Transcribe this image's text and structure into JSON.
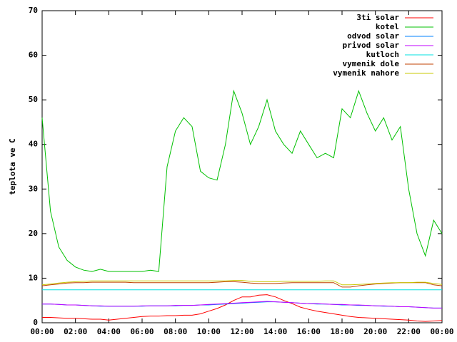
{
  "chart_data": {
    "type": "line",
    "ylabel": "teplota ve C",
    "x": [
      0,
      0.5,
      1,
      1.5,
      2,
      2.5,
      3,
      3.5,
      4,
      4.5,
      5,
      5.5,
      6,
      6.5,
      7,
      7.5,
      8,
      8.5,
      9,
      9.5,
      10,
      10.5,
      11,
      11.5,
      12,
      12.5,
      13,
      13.5,
      14,
      14.5,
      15,
      15.5,
      16,
      16.5,
      17,
      17.5,
      18,
      18.5,
      19,
      19.5,
      20,
      20.5,
      21,
      21.5,
      22,
      22.5,
      23,
      23.5,
      24
    ],
    "series": [
      {
        "name": "3ti solar",
        "color": "#ff0000",
        "values": [
          1.2,
          1.2,
          1.1,
          1.0,
          1.0,
          0.9,
          0.8,
          0.8,
          0.6,
          0.8,
          1.0,
          1.2,
          1.4,
          1.5,
          1.5,
          1.6,
          1.6,
          1.7,
          1.7,
          2.0,
          2.6,
          3.2,
          4.0,
          5.0,
          5.8,
          5.8,
          6.2,
          6.3,
          5.8,
          5.0,
          4.3,
          3.5,
          3.0,
          2.6,
          2.3,
          2.0,
          1.7,
          1.4,
          1.2,
          1.1,
          1.0,
          0.9,
          0.8,
          0.7,
          0.6,
          0.4,
          0.3,
          0.4,
          0.5
        ]
      },
      {
        "name": "kotel",
        "color": "#00c000",
        "values": [
          46,
          25,
          17,
          14,
          12.5,
          11.8,
          11.5,
          12,
          11.5,
          11.5,
          11.5,
          11.5,
          11.5,
          11.8,
          11.5,
          35,
          43,
          46,
          44,
          34,
          32.5,
          32,
          40,
          52,
          47,
          40,
          44,
          50,
          43,
          40,
          38,
          43,
          40,
          37,
          38,
          37,
          48,
          46,
          52,
          47,
          43,
          46,
          41,
          44,
          30,
          20,
          15,
          23,
          20
        ]
      },
      {
        "name": "odvod solar",
        "color": "#0080ff",
        "values": [
          4.2,
          4.2,
          4.1,
          4.0,
          4.0,
          3.9,
          3.8,
          3.7,
          3.7,
          3.7,
          3.7,
          3.7,
          3.7,
          3.8,
          3.8,
          3.8,
          3.8,
          3.9,
          3.9,
          4.0,
          4.0,
          4.1,
          4.2,
          4.3,
          4.4,
          4.5,
          4.6,
          4.7,
          4.7,
          4.6,
          4.5,
          4.4,
          4.3,
          4.2,
          4.2,
          4.1,
          4.0,
          4.0,
          3.9,
          3.9,
          3.8,
          3.7,
          3.7,
          3.6,
          3.6,
          3.5,
          3.4,
          3.3,
          3.3
        ]
      },
      {
        "name": "privod solar",
        "color": "#c000ff",
        "values": [
          4.2,
          4.2,
          4.1,
          4.0,
          4.0,
          3.9,
          3.8,
          3.8,
          3.7,
          3.7,
          3.7,
          3.7,
          3.8,
          3.8,
          3.8,
          3.8,
          3.9,
          3.9,
          3.9,
          4.0,
          4.1,
          4.2,
          4.3,
          4.4,
          4.5,
          4.6,
          4.7,
          4.8,
          4.7,
          4.6,
          4.5,
          4.4,
          4.3,
          4.3,
          4.2,
          4.1,
          4.1,
          4.0,
          4.0,
          3.9,
          3.8,
          3.8,
          3.7,
          3.6,
          3.6,
          3.5,
          3.4,
          3.3,
          3.3
        ]
      },
      {
        "name": "kutloch",
        "color": "#00e0e0",
        "values": [
          7.4,
          7.4,
          7.4,
          7.4,
          7.4,
          7.4,
          7.4,
          7.4,
          7.4,
          7.4,
          7.4,
          7.4,
          7.4,
          7.4,
          7.4,
          7.4,
          7.4,
          7.4,
          7.4,
          7.4,
          7.4,
          7.4,
          7.4,
          7.4,
          7.4,
          7.4,
          7.4,
          7.4,
          7.4,
          7.4,
          7.4,
          7.4,
          7.4,
          7.4,
          7.4,
          7.4,
          7.4,
          7.4,
          7.4,
          7.4,
          7.4,
          7.4,
          7.4,
          7.4,
          7.4,
          7.4,
          7.4,
          7.4,
          7.4
        ]
      },
      {
        "name": "vymenik dole",
        "color": "#c04000",
        "values": [
          8.3,
          8.5,
          8.7,
          8.9,
          9.0,
          9.0,
          9.1,
          9.1,
          9.1,
          9.1,
          9.1,
          9.0,
          9.0,
          9.0,
          9.0,
          9.0,
          9.0,
          9.0,
          9.0,
          9.0,
          9.0,
          9.1,
          9.2,
          9.2,
          9.1,
          8.9,
          8.8,
          8.8,
          8.8,
          8.9,
          9.0,
          9.0,
          9.0,
          9.0,
          9.0,
          9.0,
          8.0,
          8.0,
          8.3,
          8.5,
          8.7,
          8.8,
          8.9,
          9.0,
          9.0,
          9.0,
          9.0,
          8.5,
          8.3
        ]
      },
      {
        "name": "vymenik nahore",
        "color": "#c8c800",
        "values": [
          8.5,
          8.7,
          8.9,
          9.1,
          9.2,
          9.3,
          9.4,
          9.4,
          9.4,
          9.4,
          9.4,
          9.4,
          9.4,
          9.4,
          9.4,
          9.4,
          9.4,
          9.4,
          9.4,
          9.4,
          9.4,
          9.4,
          9.4,
          9.5,
          9.5,
          9.3,
          9.2,
          9.2,
          9.2,
          9.3,
          9.3,
          9.3,
          9.3,
          9.3,
          9.4,
          9.4,
          8.5,
          8.5,
          8.6,
          8.7,
          8.8,
          8.9,
          9.0,
          9.0,
          9.0,
          9.1,
          9.1,
          8.8,
          8.6
        ]
      }
    ],
    "xlim": [
      0,
      24
    ],
    "xticks": [
      {
        "value": 0,
        "label": "00:00"
      },
      {
        "value": 2,
        "label": "02:00"
      },
      {
        "value": 4,
        "label": "04:00"
      },
      {
        "value": 6,
        "label": "06:00"
      },
      {
        "value": 8,
        "label": "08:00"
      },
      {
        "value": 10,
        "label": "10:00"
      },
      {
        "value": 12,
        "label": "12:00"
      },
      {
        "value": 14,
        "label": "14:00"
      },
      {
        "value": 16,
        "label": "16:00"
      },
      {
        "value": 18,
        "label": "18:00"
      },
      {
        "value": 20,
        "label": "20:00"
      },
      {
        "value": 22,
        "label": "22:00"
      },
      {
        "value": 24,
        "label": "00:00"
      }
    ],
    "ylim": [
      0,
      70
    ],
    "yticks": [
      0,
      10,
      20,
      30,
      40,
      50,
      60,
      70
    ],
    "grid": false,
    "legend": "top-right"
  }
}
